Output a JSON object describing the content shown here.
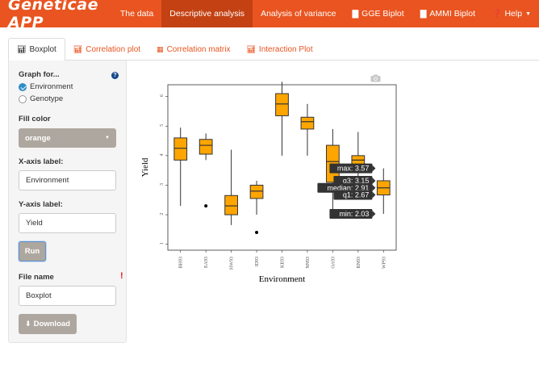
{
  "navbar": {
    "brand": "Geneticae APP",
    "items": [
      {
        "label": "The data",
        "icon": ""
      },
      {
        "label": "Descriptive analysis",
        "icon": "",
        "active": true
      },
      {
        "label": "Analysis of variance",
        "icon": ""
      },
      {
        "label": "GGE Biplot",
        "icon": "bar-chart-icon"
      },
      {
        "label": "AMMI Biplot",
        "icon": "bar-chart-icon"
      },
      {
        "label": "Help",
        "icon": "question-circle-icon"
      }
    ]
  },
  "tabs": [
    {
      "label": "Boxplot",
      "icon": "bar-chart-icon",
      "active": true
    },
    {
      "label": "Correlation plot",
      "icon": "bar-chart-icon"
    },
    {
      "label": "Correlation matrix",
      "icon": "table-icon"
    },
    {
      "label": "Interaction Plot",
      "icon": "bar-chart-icon"
    }
  ],
  "sidebar": {
    "graph_for_label": "Graph for...",
    "options": [
      {
        "label": "Environment",
        "checked": true
      },
      {
        "label": "Genotype",
        "checked": false
      }
    ],
    "fill_color_label": "Fill color",
    "fill_color_value": "orange",
    "x_label_label": "X-axis label:",
    "x_label_value": "Environment",
    "y_label_label": "Y-axis label:",
    "y_label_value": "Yield",
    "run_label": "Run",
    "file_name_label": "File name",
    "file_name_required": "!",
    "file_name_value": "Boxplot",
    "download_label": "Download"
  },
  "colors": {
    "navbar": "#e95420",
    "navbar_active": "#c34113",
    "box_fill": "#ffa500",
    "button": "#aea79f"
  },
  "chart_data": {
    "type": "boxplot",
    "xlabel": "Environment",
    "ylabel": "Yield",
    "ylim": [
      0.8,
      6.4
    ],
    "y_ticks": [
      1,
      2,
      3,
      4,
      5,
      6
    ],
    "categories": [
      "BH93",
      "EA93",
      "HW93",
      "ID93",
      "KE93",
      "NN93",
      "OA93",
      "RN93",
      "WP93"
    ],
    "boxes": [
      {
        "min": 2.3,
        "q1": 3.85,
        "median": 4.25,
        "q3": 4.6,
        "max": 4.95,
        "outliers": []
      },
      {
        "min": 3.85,
        "q1": 4.05,
        "median": 4.35,
        "q3": 4.55,
        "max": 4.75,
        "outliers": [
          2.3
        ]
      },
      {
        "min": 1.65,
        "q1": 2.0,
        "median": 2.3,
        "q3": 2.65,
        "max": 4.2,
        "outliers": []
      },
      {
        "min": 2.0,
        "q1": 2.55,
        "median": 2.8,
        "q3": 3.0,
        "max": 3.15,
        "outliers": [
          1.4
        ]
      },
      {
        "min": 4.0,
        "q1": 5.35,
        "median": 5.75,
        "q3": 6.1,
        "max": 6.5,
        "outliers": []
      },
      {
        "min": 4.0,
        "q1": 4.9,
        "median": 5.15,
        "q3": 5.3,
        "max": 5.75,
        "outliers": []
      },
      {
        "min": 2.0,
        "q1": 3.1,
        "median": 3.8,
        "q3": 4.35,
        "max": 4.9,
        "outliers": []
      },
      {
        "min": 3.1,
        "q1": 3.6,
        "median": 3.85,
        "q3": 4.0,
        "max": 4.8,
        "outliers": []
      },
      {
        "min": 2.03,
        "q1": 2.67,
        "median": 2.91,
        "q3": 3.15,
        "max": 3.57,
        "outliers": []
      }
    ],
    "tooltip": {
      "category_index": 8,
      "lines": [
        {
          "label": "max: 3.57",
          "value": 3.57
        },
        {
          "label": "q3: 3.15",
          "value": 3.15
        },
        {
          "label": "median: 2.91",
          "value": 2.91
        },
        {
          "label": "q1: 2.67",
          "value": 2.67
        },
        {
          "label": "min: 2.03",
          "value": 2.03
        }
      ]
    }
  }
}
